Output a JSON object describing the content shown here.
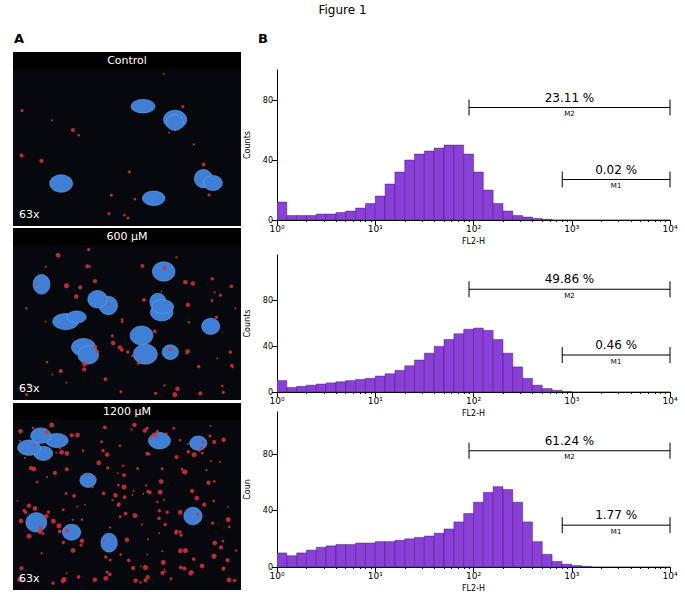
{
  "title": "Figure 1",
  "panels": {
    "A": {
      "label": "A",
      "images": [
        {
          "label": "Control",
          "magnification": "63x"
        },
        {
          "label": "600 µM",
          "magnification": "63x"
        },
        {
          "label": "1200 µM",
          "magnification": "63x"
        }
      ]
    },
    "B": {
      "label": "B"
    }
  },
  "chart_data": [
    {
      "type": "histogram",
      "ylabel": "Counts",
      "xlabel": "FL2-H",
      "log": "x",
      "color": "#8b3fd9",
      "xlim": [
        1,
        10000
      ],
      "xticks": [
        {
          "value": 1,
          "label": "10⁰"
        },
        {
          "value": 10,
          "label": "10¹"
        },
        {
          "value": 100,
          "label": "10²"
        },
        {
          "value": 1000,
          "label": "10³"
        },
        {
          "value": 10000,
          "label": "10⁴"
        }
      ],
      "ylim": [
        0,
        100
      ],
      "yticks": [
        0,
        40,
        80
      ],
      "bins": [
        1,
        1.259,
        1.585,
        1.995,
        2.512,
        3.162,
        3.981,
        5.012,
        6.31,
        7.943,
        10,
        12.59,
        15.85,
        19.95,
        25.12,
        31.62,
        39.81,
        50.12,
        63.1,
        79.43,
        100,
        125.9,
        158.5,
        199.5,
        251.2,
        316.2,
        398.1,
        501.2,
        631,
        794.3,
        1000,
        1259,
        1585,
        1995,
        2512,
        3162,
        3981,
        5012,
        6310,
        7943,
        10000
      ],
      "counts": [
        12,
        3,
        3,
        3,
        4,
        4,
        5,
        6,
        8,
        11,
        16,
        24,
        32,
        40,
        44,
        46,
        48,
        50,
        50,
        44,
        32,
        20,
        11,
        6,
        3,
        2,
        1,
        0.5,
        0,
        0,
        0,
        0,
        0,
        0,
        0,
        0,
        0,
        0,
        0,
        0
      ],
      "markers": [
        {
          "name": "M2",
          "label": "23.11 %",
          "range": [
            90,
            10000
          ]
        },
        {
          "name": "M1",
          "label": "0.02 %",
          "range": [
            800,
            10000
          ]
        }
      ]
    },
    {
      "type": "histogram",
      "ylabel": "Counts",
      "xlabel": "FL2-H",
      "log": "x",
      "color": "#8b3fd9",
      "xlim": [
        1,
        10000
      ],
      "xticks": [
        {
          "value": 1,
          "label": "10⁰"
        },
        {
          "value": 10,
          "label": "10¹"
        },
        {
          "value": 100,
          "label": "10²"
        },
        {
          "value": 1000,
          "label": "10³"
        },
        {
          "value": 10000,
          "label": "10⁴"
        }
      ],
      "ylim": [
        0,
        120
      ],
      "yticks": [
        0,
        40,
        80
      ],
      "bins": [
        1,
        1.259,
        1.585,
        1.995,
        2.512,
        3.162,
        3.981,
        5.012,
        6.31,
        7.943,
        10,
        12.59,
        15.85,
        19.95,
        25.12,
        31.62,
        39.81,
        50.12,
        63.1,
        79.43,
        100,
        125.9,
        158.5,
        199.5,
        251.2,
        316.2,
        398.1,
        501.2,
        631,
        794.3,
        1000,
        1259,
        1585,
        1995,
        2512,
        3162,
        3981,
        5012,
        6310,
        7943,
        10000
      ],
      "counts": [
        10,
        4,
        5,
        6,
        7,
        8,
        9,
        10,
        11,
        12,
        14,
        16,
        19,
        23,
        28,
        34,
        40,
        46,
        51,
        55,
        56,
        54,
        46,
        34,
        22,
        12,
        6,
        3,
        1.5,
        0.5,
        0,
        0,
        0,
        0,
        0,
        0,
        0,
        0,
        0,
        0
      ],
      "markers": [
        {
          "name": "M2",
          "label": "49.86 %",
          "range": [
            90,
            10000
          ]
        },
        {
          "name": "M1",
          "label": "0.46 %",
          "range": [
            800,
            10000
          ]
        }
      ]
    },
    {
      "type": "histogram",
      "ylabel": "Coun",
      "xlabel": "FL2-H",
      "log": "x",
      "color": "#8b3fd9",
      "xlim": [
        1,
        10000
      ],
      "xticks": [
        {
          "value": 1,
          "label": "10⁰"
        },
        {
          "value": 10,
          "label": "10¹"
        },
        {
          "value": 100,
          "label": "10²"
        },
        {
          "value": 1000,
          "label": "10³"
        },
        {
          "value": 10000,
          "label": "10⁴"
        }
      ],
      "ylim": [
        0,
        110
      ],
      "yticks": [
        0,
        40,
        80
      ],
      "bins": [
        1,
        1.259,
        1.585,
        1.995,
        2.512,
        3.162,
        3.981,
        5.012,
        6.31,
        7.943,
        10,
        12.59,
        15.85,
        19.95,
        25.12,
        31.62,
        39.81,
        50.12,
        63.1,
        79.43,
        100,
        125.9,
        158.5,
        199.5,
        251.2,
        316.2,
        398.1,
        501.2,
        631,
        794.3,
        1000,
        1259,
        1585,
        1995,
        2512,
        3162,
        3981,
        5012,
        6310,
        7943,
        10000
      ],
      "counts": [
        10,
        8,
        10,
        12,
        14,
        15,
        16,
        16,
        17,
        17,
        18,
        18,
        19,
        20,
        21,
        22,
        24,
        27,
        32,
        38,
        46,
        53,
        57,
        55,
        46,
        32,
        18,
        9,
        4,
        2,
        1,
        0.5,
        0,
        0,
        0,
        0,
        0,
        0,
        0,
        0
      ],
      "markers": [
        {
          "name": "M2",
          "label": "61.24 %",
          "range": [
            90,
            10000
          ]
        },
        {
          "name": "M1",
          "label": "1.77 %",
          "range": [
            800,
            10000
          ]
        }
      ]
    }
  ]
}
